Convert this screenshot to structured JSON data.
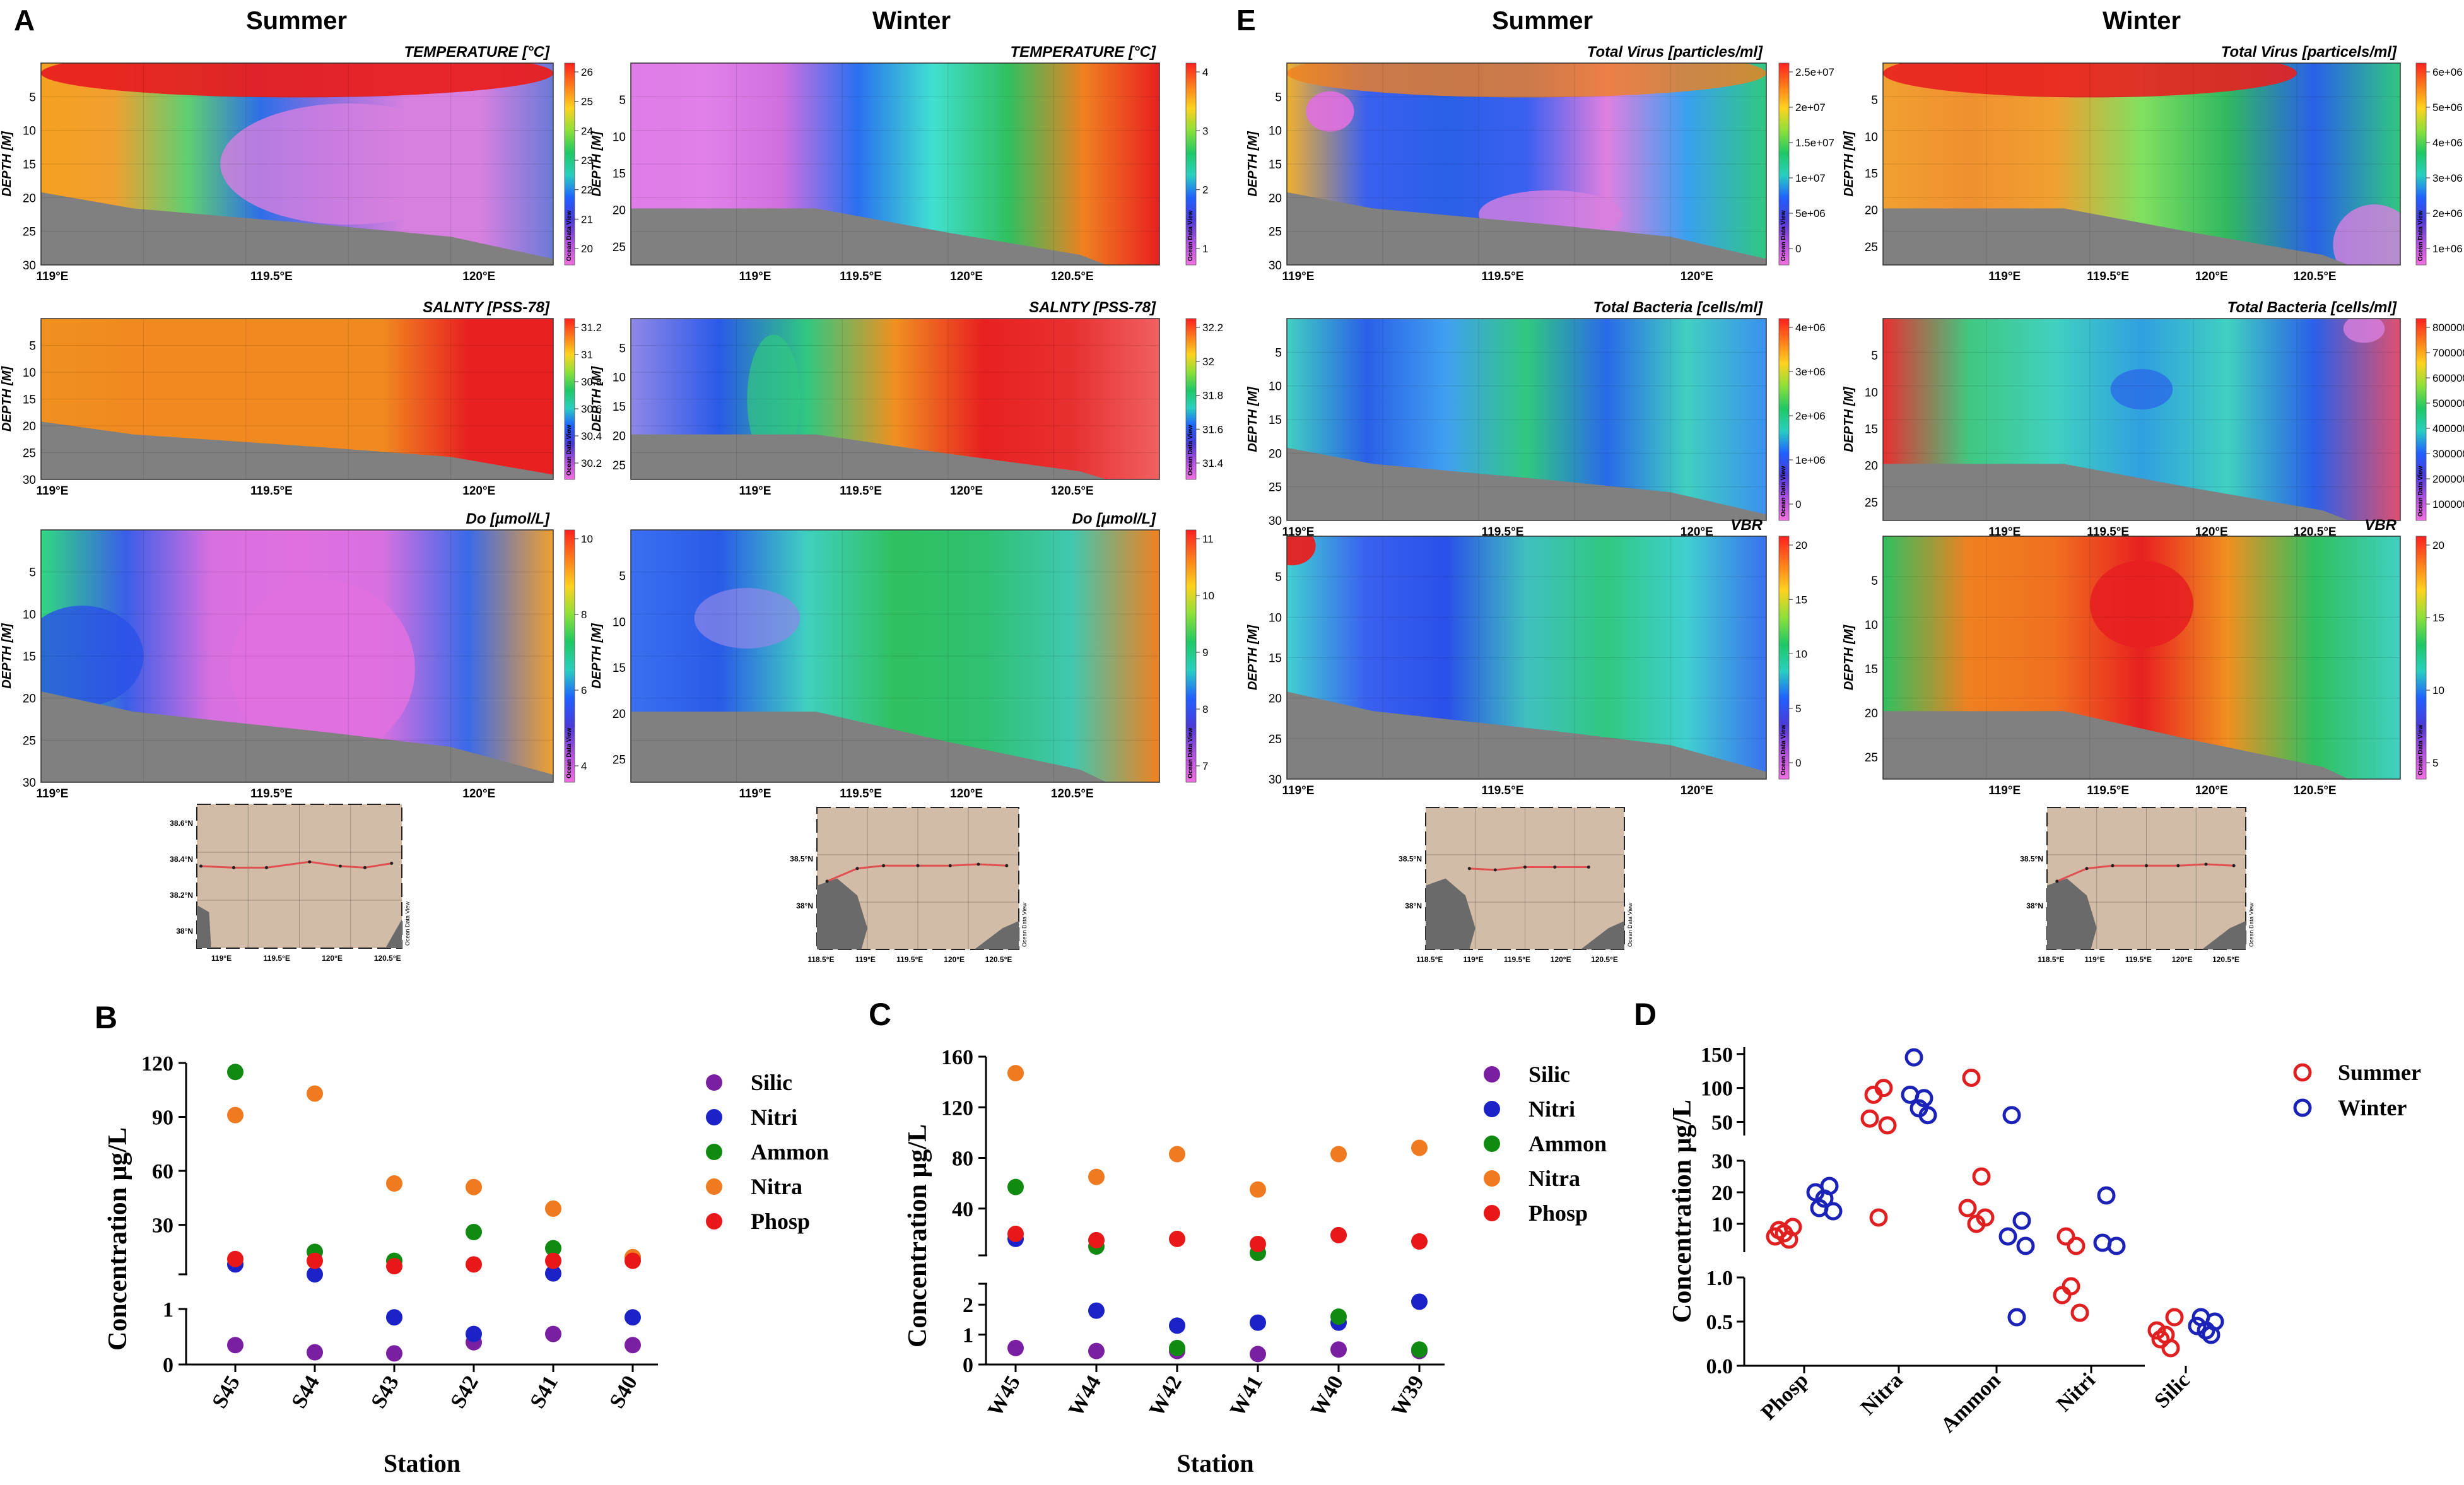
{
  "colors": {
    "summer": "#e02020",
    "winter": "#1a22b8",
    "silic": "#7a1fa2",
    "nitri": "#1a22c8",
    "ammon": "#118a11",
    "nitra": "#f07a20",
    "phosp": "#e81818",
    "bottom": "#808080",
    "map_land": "#d2bca8"
  },
  "panel_letters": {
    "A": "A",
    "B": "B",
    "C": "C",
    "D": "D",
    "E": "E"
  },
  "column_titles": {
    "summer": "Summer",
    "winter": "Winter"
  },
  "odv_label": "Ocean Data View",
  "chart_data": [
    {
      "type": "heatmap",
      "id": "a-sum-temp",
      "title": "TEMPERATURE [°C]",
      "ylabel": "DEPTH [M]",
      "y_ticks": [
        "5",
        "10",
        "15",
        "20",
        "25",
        "30"
      ],
      "x_ticks": [
        "119°E",
        "119.5°E",
        "120°E"
      ],
      "scale_ticks": [
        "26",
        "25",
        "24",
        "23",
        "22",
        "21",
        "20"
      ]
    },
    {
      "type": "heatmap",
      "id": "a-sum-sal",
      "title": "SALNTY [PSS-78]",
      "ylabel": "DEPTH [M]",
      "y_ticks": [
        "5",
        "10",
        "15",
        "20",
        "25",
        "30"
      ],
      "x_ticks": [
        "119°E",
        "119.5°E",
        "120°E"
      ],
      "scale_ticks": [
        "31.2",
        "31",
        "30.8",
        "30.6",
        "30.4",
        "30.2"
      ]
    },
    {
      "type": "heatmap",
      "id": "a-sum-do",
      "title": "Do [µmol/L]",
      "ylabel": "DEPTH [M]",
      "y_ticks": [
        "5",
        "10",
        "15",
        "20",
        "25",
        "30"
      ],
      "x_ticks": [
        "119°E",
        "119.5°E",
        "120°E"
      ],
      "scale_ticks": [
        "10",
        "8",
        "6",
        "4"
      ]
    },
    {
      "type": "heatmap",
      "id": "a-win-temp",
      "title": "TEMPERATURE [°C]",
      "ylabel": "DEPTH [M]",
      "y_ticks": [
        "5",
        "10",
        "15",
        "20",
        "25"
      ],
      "x_ticks": [
        "119°E",
        "119.5°E",
        "120°E",
        "120.5°E"
      ],
      "scale_ticks": [
        "4",
        "3",
        "2",
        "1"
      ]
    },
    {
      "type": "heatmap",
      "id": "a-win-sal",
      "title": "SALNTY [PSS-78]",
      "ylabel": "DEPTH [M]",
      "y_ticks": [
        "5",
        "10",
        "15",
        "20",
        "25"
      ],
      "x_ticks": [
        "119°E",
        "119.5°E",
        "120°E",
        "120.5°E"
      ],
      "scale_ticks": [
        "32.2",
        "32",
        "31.8",
        "31.6",
        "31.4"
      ]
    },
    {
      "type": "heatmap",
      "id": "a-win-do",
      "title": "Do [µmol/L]",
      "ylabel": "DEPTH [M]",
      "y_ticks": [
        "5",
        "10",
        "15",
        "20",
        "25"
      ],
      "x_ticks": [
        "119°E",
        "119.5°E",
        "120°E",
        "120.5°E"
      ],
      "scale_ticks": [
        "11",
        "10",
        "9",
        "8",
        "7"
      ]
    },
    {
      "type": "heatmap",
      "id": "e-sum-virus",
      "title": "Total Virus [particles/ml]",
      "ylabel": "DEPTH [M]",
      "y_ticks": [
        "5",
        "10",
        "15",
        "20",
        "25",
        "30"
      ],
      "x_ticks": [
        "119°E",
        "119.5°E",
        "120°E"
      ],
      "scale_ticks": [
        "2.5e+07",
        "2e+07",
        "1.5e+07",
        "1e+07",
        "5e+06",
        "0"
      ]
    },
    {
      "type": "heatmap",
      "id": "e-sum-bact",
      "title": "Total Bacteria [cells/ml]",
      "ylabel": "DEPTH [M]",
      "y_ticks": [
        "5",
        "10",
        "15",
        "20",
        "25",
        "30"
      ],
      "x_ticks": [
        "119°E",
        "119.5°E",
        "120°E"
      ],
      "scale_ticks": [
        "4e+06",
        "3e+06",
        "2e+06",
        "1e+06",
        "0"
      ]
    },
    {
      "type": "heatmap",
      "id": "e-sum-vbr",
      "title": "VBR",
      "ylabel": "DEPTH [M]",
      "y_ticks": [
        "5",
        "10",
        "15",
        "20",
        "25",
        "30"
      ],
      "x_ticks": [
        "119°E",
        "119.5°E",
        "120°E"
      ],
      "scale_ticks": [
        "20",
        "15",
        "10",
        "5",
        "0"
      ]
    },
    {
      "type": "heatmap",
      "id": "e-win-virus",
      "title": "Total Virus [particels/ml]",
      "ylabel": "DEPTH [M]",
      "y_ticks": [
        "5",
        "10",
        "15",
        "20",
        "25"
      ],
      "x_ticks": [
        "119°E",
        "119.5°E",
        "120°E",
        "120.5°E"
      ],
      "scale_ticks": [
        "6e+06",
        "5e+06",
        "4e+06",
        "3e+06",
        "2e+06",
        "1e+06"
      ]
    },
    {
      "type": "heatmap",
      "id": "e-win-bact",
      "title": "Total Bacteria [cells/ml]",
      "ylabel": "DEPTH [M]",
      "y_ticks": [
        "5",
        "10",
        "15",
        "20",
        "25"
      ],
      "x_ticks": [
        "119°E",
        "119.5°E",
        "120°E",
        "120.5°E"
      ],
      "scale_ticks": [
        "800000",
        "700000",
        "600000",
        "500000",
        "400000",
        "300000",
        "200000",
        "100000"
      ]
    },
    {
      "type": "heatmap",
      "id": "e-win-vbr",
      "title": "VBR",
      "ylabel": "DEPTH [M]",
      "y_ticks": [
        "5",
        "10",
        "15",
        "20",
        "25"
      ],
      "x_ticks": [
        "119°E",
        "119.5°E",
        "120°E",
        "120.5°E"
      ],
      "scale_ticks": [
        "20",
        "15",
        "10",
        "5"
      ]
    },
    {
      "type": "map",
      "id": "map-a-summer",
      "lat_ticks": [
        "38.6°N",
        "38.4°N",
        "38.2°N",
        "38°N"
      ],
      "lon_ticks": [
        "119°E",
        "119.5°E",
        "120°E",
        "120.5°E"
      ]
    },
    {
      "type": "map",
      "id": "map-a-winter",
      "lat_ticks": [
        "38.5°N",
        "38°N"
      ],
      "lon_ticks": [
        "118.5°E",
        "119°E",
        "119.5°E",
        "120°E",
        "120.5°E"
      ]
    },
    {
      "type": "map",
      "id": "map-e-summer",
      "lat_ticks": [
        "38.5°N",
        "38°N"
      ],
      "lon_ticks": [
        "118.5°E",
        "119°E",
        "119.5°E",
        "120°E",
        "120.5°E"
      ]
    },
    {
      "type": "map",
      "id": "map-e-winter",
      "lat_ticks": [
        "38.5°N",
        "38°N"
      ],
      "lon_ticks": [
        "118.5°E",
        "119°E",
        "119.5°E",
        "120°E",
        "120.5°E"
      ]
    },
    {
      "type": "scatter",
      "id": "panel-b",
      "title": "",
      "xlabel": "Station",
      "ylabel": "Concentration   μg/L",
      "categories": [
        "S45",
        "S44",
        "S43",
        "S42",
        "S41",
        "S40"
      ],
      "y_upper_ticks": [
        "120",
        "90",
        "60",
        "30"
      ],
      "y_lower_ticks": [
        "1",
        "0"
      ],
      "y_upper_range": [
        2.5,
        120
      ],
      "y_lower_range": [
        0,
        1
      ],
      "series": [
        {
          "name": "Silic",
          "color_key": "silic",
          "values": [
            0.35,
            0.22,
            0.2,
            0.4,
            0.55,
            0.35
          ]
        },
        {
          "name": "Nitri",
          "color_key": "nitri",
          "values": [
            8,
            2.5,
            0.85,
            0.55,
            3,
            0.85
          ]
        },
        {
          "name": "Ammon",
          "color_key": "ammon",
          "values": [
            115,
            15,
            10,
            26,
            17,
            12
          ]
        },
        {
          "name": "Nitra",
          "color_key": "nitra",
          "values": [
            91,
            103,
            53,
            51,
            39,
            12
          ]
        },
        {
          "name": "Phosp",
          "color_key": "phosp",
          "values": [
            11,
            10,
            7,
            8,
            10,
            10
          ]
        }
      ]
    },
    {
      "type": "scatter",
      "id": "panel-c",
      "title": "",
      "xlabel": "Station",
      "ylabel": "Concentration   μg/L",
      "categories": [
        "W45",
        "W44",
        "W42",
        "W41",
        "W40",
        "W39"
      ],
      "y_upper_ticks": [
        "160",
        "120",
        "80",
        "40"
      ],
      "y_lower_ticks": [
        "2",
        "1",
        "0"
      ],
      "y_upper_range": [
        3,
        160
      ],
      "y_lower_range": [
        0,
        2.7
      ],
      "series": [
        {
          "name": "Silic",
          "color_key": "silic",
          "values": [
            0.55,
            0.45,
            0.45,
            0.35,
            0.5,
            0.45
          ]
        },
        {
          "name": "Nitri",
          "color_key": "nitri",
          "values": [
            16,
            1.8,
            1.3,
            1.4,
            1.4,
            2.1
          ]
        },
        {
          "name": "Ammon",
          "color_key": "ammon",
          "values": [
            57,
            10,
            0.55,
            5,
            1.6,
            0.5
          ]
        },
        {
          "name": "Nitra",
          "color_key": "nitra",
          "values": [
            147,
            65,
            83,
            55,
            83,
            88
          ]
        },
        {
          "name": "Phosp",
          "color_key": "phosp",
          "values": [
            20,
            15,
            16,
            12,
            19,
            14
          ]
        }
      ]
    },
    {
      "type": "scatter",
      "id": "panel-d",
      "title": "",
      "xlabel": "",
      "ylabel": "Concentration   μg/L",
      "categories": [
        "Phosp",
        "Nitra",
        "Ammon",
        "Nitri",
        "Silic"
      ],
      "y_top_ticks": [
        "150",
        "100",
        "50"
      ],
      "y_mid_ticks": [
        "30",
        "20",
        "10"
      ],
      "y_low_ticks": [
        "1.0",
        "0.5",
        "0.0"
      ],
      "y_top_range": [
        30,
        160
      ],
      "y_mid_range": [
        1,
        30
      ],
      "y_low_range": [
        0,
        1
      ],
      "series": [
        {
          "name": "Summer",
          "color_key": "summer",
          "values": [
            [
              8,
              5,
              6,
              9,
              7
            ],
            [
              90,
              100,
              55,
              45,
              12
            ],
            [
              115,
              25,
              15,
              12,
              10
            ],
            [
              6,
              3,
              0.8,
              0.6,
              0.9
            ],
            [
              0.3,
              0.2,
              0.4,
              0.55,
              0.35
            ]
          ]
        },
        {
          "name": "Winter",
          "color_key": "winter",
          "values": [
            [
              15,
              22,
              20,
              14,
              18
            ],
            [
              145,
              85,
              90,
              60,
              70
            ],
            [
              60,
              11,
              6,
              3,
              0.55
            ],
            [
              19,
              3,
              4
            ],
            [
              0.55,
              0.35,
              0.45,
              0.5,
              0.4
            ]
          ]
        }
      ]
    }
  ]
}
